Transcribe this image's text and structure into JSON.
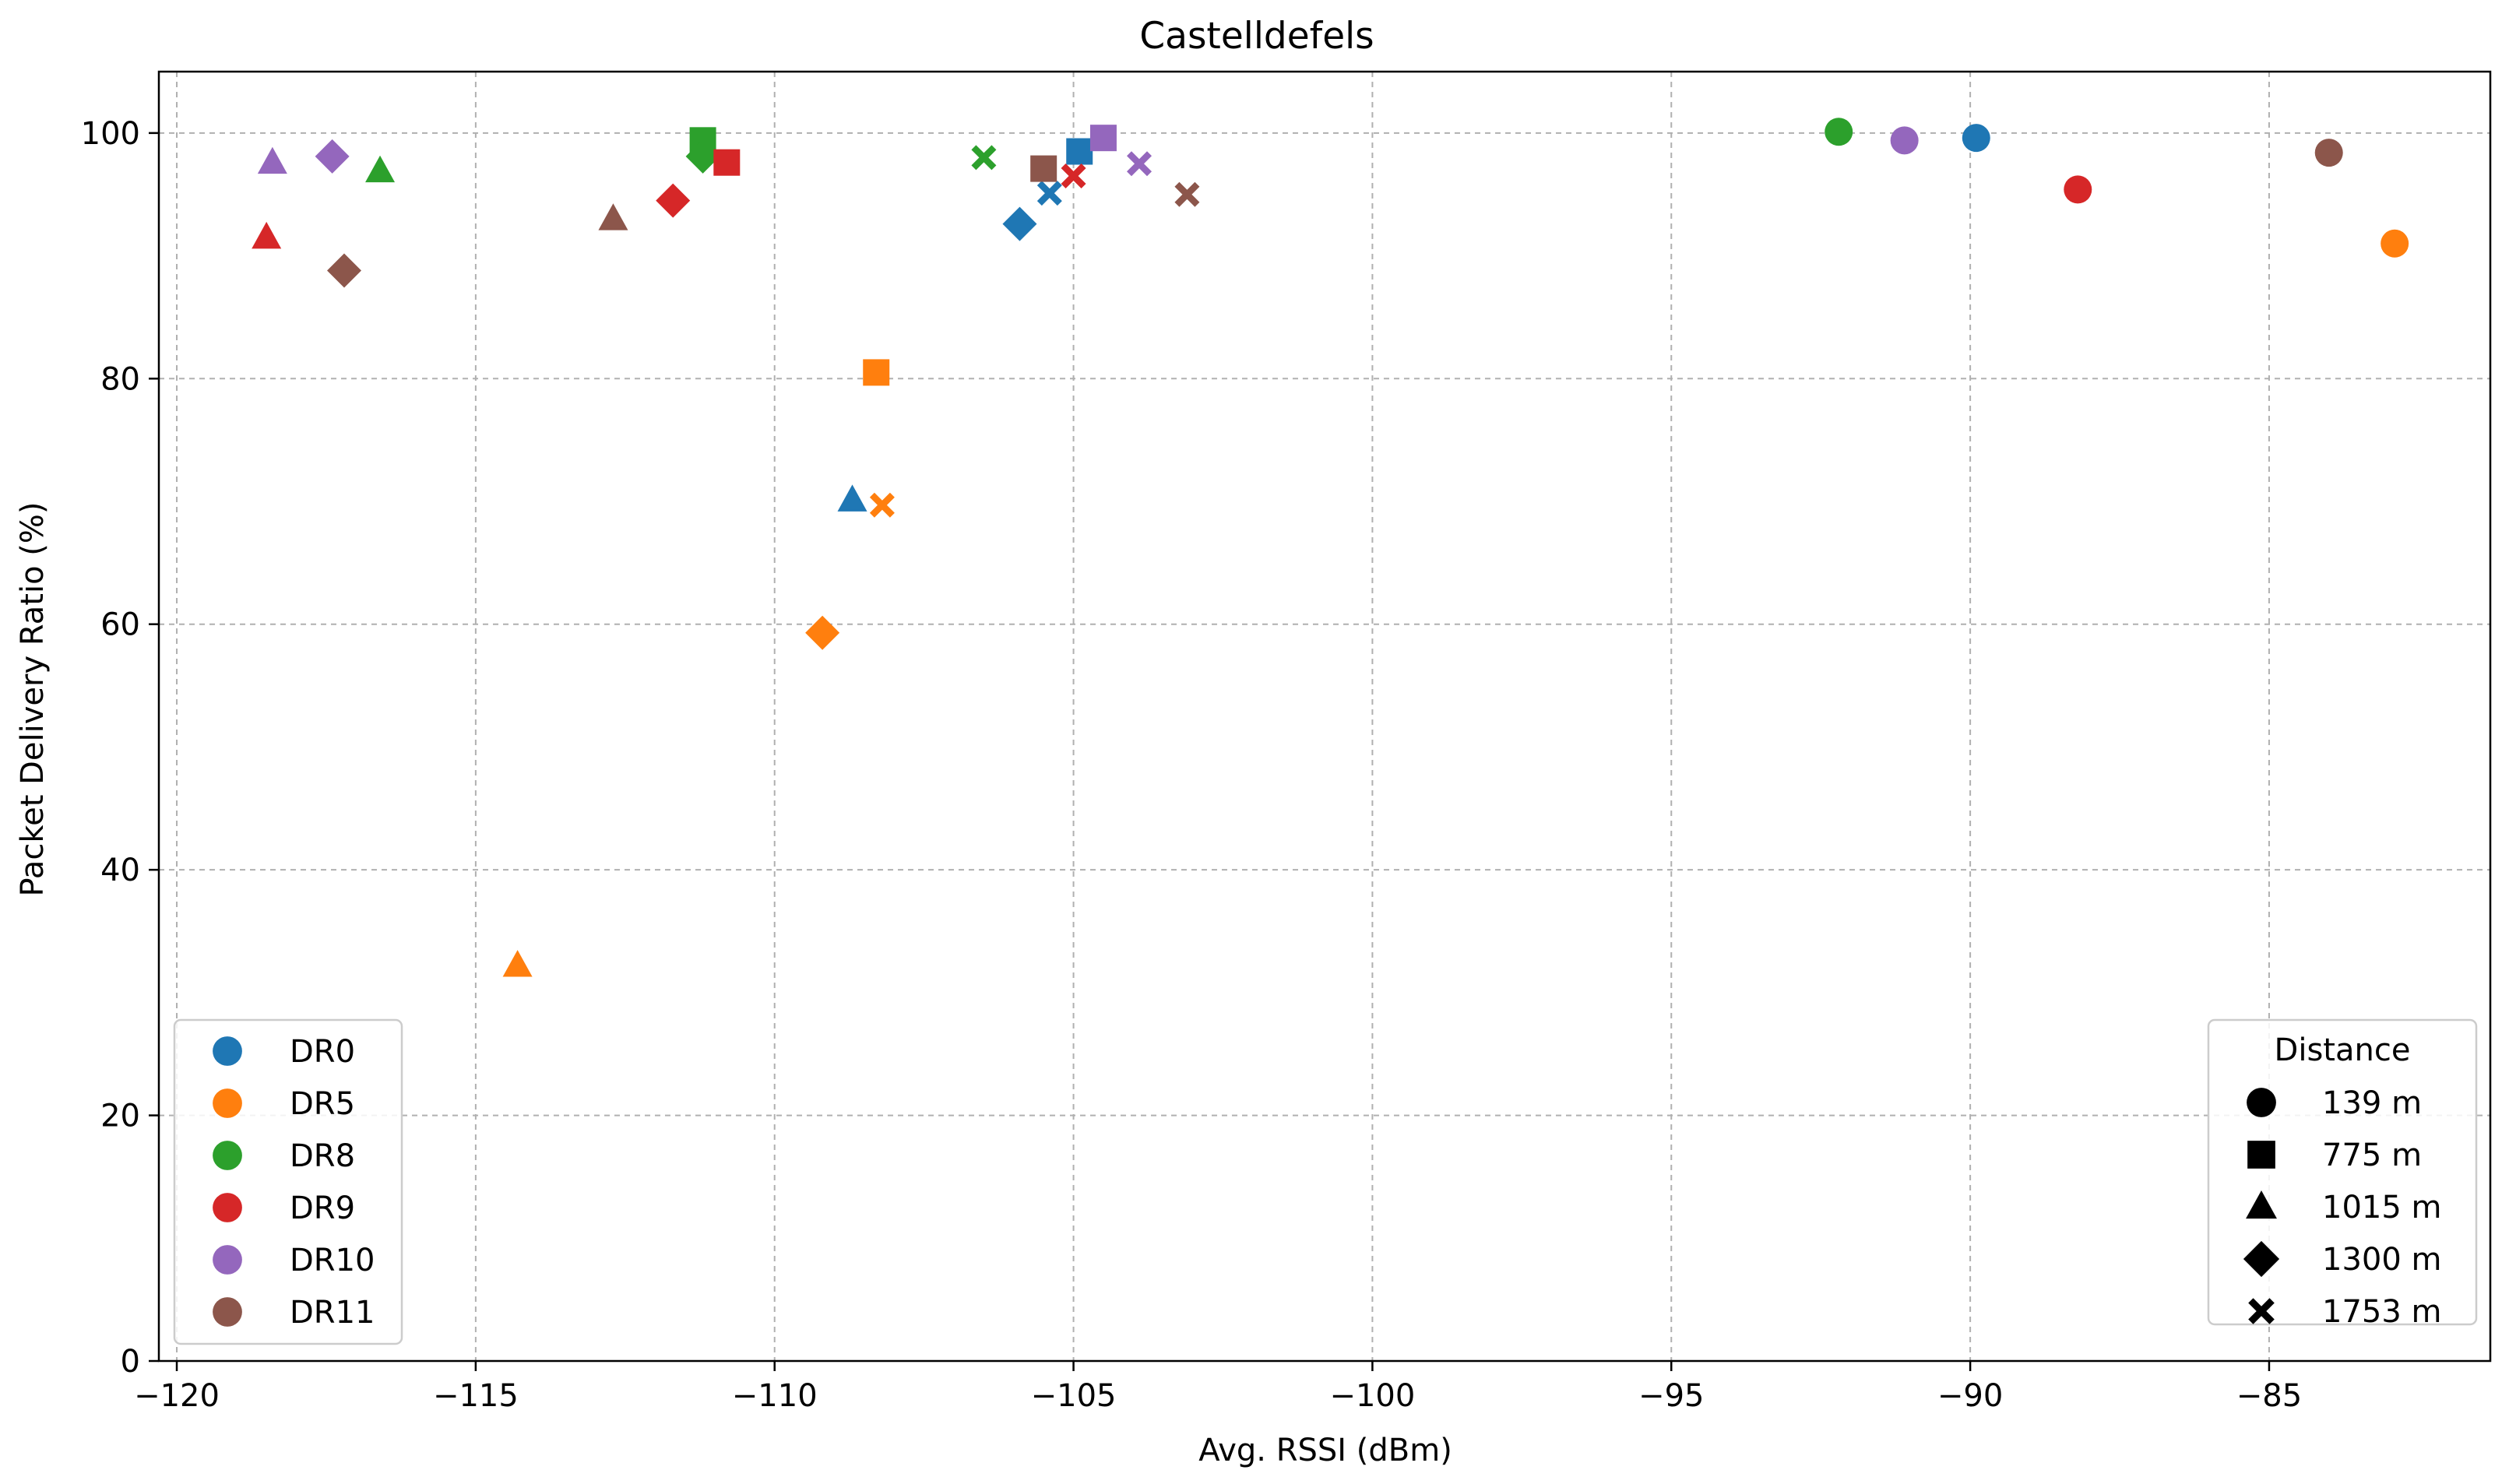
{
  "chart_data": {
    "type": "scatter",
    "title": "Castelldefels",
    "xlabel": "Avg. RSSI (dBm)",
    "ylabel": "Packet Delivery Ratio (%)",
    "xlim": [
      -120.3,
      -81.3
    ],
    "ylim": [
      0,
      105
    ],
    "xticks": [
      -120,
      -115,
      -110,
      -105,
      -100,
      -95,
      -90,
      -85
    ],
    "xtick_labels": [
      "−120",
      "−115",
      "−110",
      "−105",
      "−100",
      "−95",
      "−90",
      "−85"
    ],
    "yticks": [
      0,
      20,
      40,
      60,
      80,
      100
    ],
    "ytick_labels": [
      "0",
      "20",
      "40",
      "60",
      "80",
      "100"
    ],
    "grid": true,
    "color_legend": {
      "placement": "lower-left",
      "entries": [
        {
          "label": "DR0",
          "color": "#1f77b4"
        },
        {
          "label": "DR5",
          "color": "#ff7f0e"
        },
        {
          "label": "DR8",
          "color": "#2ca02c"
        },
        {
          "label": "DR9",
          "color": "#d62728"
        },
        {
          "label": "DR10",
          "color": "#9467bd"
        },
        {
          "label": "DR11",
          "color": "#8c564b"
        }
      ]
    },
    "marker_legend": {
      "placement": "lower-right",
      "title": "Distance",
      "entries": [
        {
          "label": "139 m",
          "marker": "circle"
        },
        {
          "label": "775 m",
          "marker": "square"
        },
        {
          "label": "1015 m",
          "marker": "triangle"
        },
        {
          "label": "1300 m",
          "marker": "diamond"
        },
        {
          "label": "1753 m",
          "marker": "x"
        }
      ]
    },
    "series": [
      {
        "name": "DR0",
        "color": "#1f77b4",
        "points": [
          {
            "distance": "139 m",
            "x": -89.9,
            "y": 99.6
          },
          {
            "distance": "775 m",
            "x": -104.9,
            "y": 98.5
          },
          {
            "distance": "1015 m",
            "x": -108.7,
            "y": 70.1
          },
          {
            "distance": "1300 m",
            "x": -105.9,
            "y": 92.6
          },
          {
            "distance": "1753 m",
            "x": -105.4,
            "y": 95.1
          }
        ]
      },
      {
        "name": "DR5",
        "color": "#ff7f0e",
        "points": [
          {
            "distance": "139 m",
            "x": -82.9,
            "y": 91.0
          },
          {
            "distance": "775 m",
            "x": -108.3,
            "y": 80.5
          },
          {
            "distance": "1015 m",
            "x": -114.3,
            "y": 32.2
          },
          {
            "distance": "1300 m",
            "x": -109.2,
            "y": 59.3
          },
          {
            "distance": "1753 m",
            "x": -108.2,
            "y": 69.7
          }
        ]
      },
      {
        "name": "DR8",
        "color": "#2ca02c",
        "points": [
          {
            "distance": "139 m",
            "x": -92.2,
            "y": 100.1
          },
          {
            "distance": "775 m",
            "x": -111.2,
            "y": 99.4
          },
          {
            "distance": "1015 m",
            "x": -116.6,
            "y": 96.9
          },
          {
            "distance": "1300 m",
            "x": -111.2,
            "y": 98.1
          },
          {
            "distance": "1753 m",
            "x": -106.5,
            "y": 98.0
          }
        ]
      },
      {
        "name": "DR9",
        "color": "#d62728",
        "points": [
          {
            "distance": "139 m",
            "x": -88.2,
            "y": 95.4
          },
          {
            "distance": "775 m",
            "x": -110.8,
            "y": 97.6
          },
          {
            "distance": "1015 m",
            "x": -118.5,
            "y": 91.5
          },
          {
            "distance": "1300 m",
            "x": -111.7,
            "y": 94.5
          },
          {
            "distance": "1753 m",
            "x": -105.0,
            "y": 96.5
          }
        ]
      },
      {
        "name": "DR10",
        "color": "#9467bd",
        "points": [
          {
            "distance": "139 m",
            "x": -91.1,
            "y": 99.4
          },
          {
            "distance": "775 m",
            "x": -104.5,
            "y": 99.6
          },
          {
            "distance": "1015 m",
            "x": -118.4,
            "y": 97.6
          },
          {
            "distance": "1300 m",
            "x": -117.4,
            "y": 98.1
          },
          {
            "distance": "1753 m",
            "x": -103.9,
            "y": 97.5
          }
        ]
      },
      {
        "name": "DR11",
        "color": "#8c564b",
        "points": [
          {
            "distance": "139 m",
            "x": -84.0,
            "y": 98.4
          },
          {
            "distance": "775 m",
            "x": -105.5,
            "y": 97.1
          },
          {
            "distance": "1015 m",
            "x": -112.7,
            "y": 93.0
          },
          {
            "distance": "1300 m",
            "x": -117.2,
            "y": 88.8
          },
          {
            "distance": "1753 m",
            "x": -103.1,
            "y": 95.0
          }
        ]
      }
    ]
  }
}
